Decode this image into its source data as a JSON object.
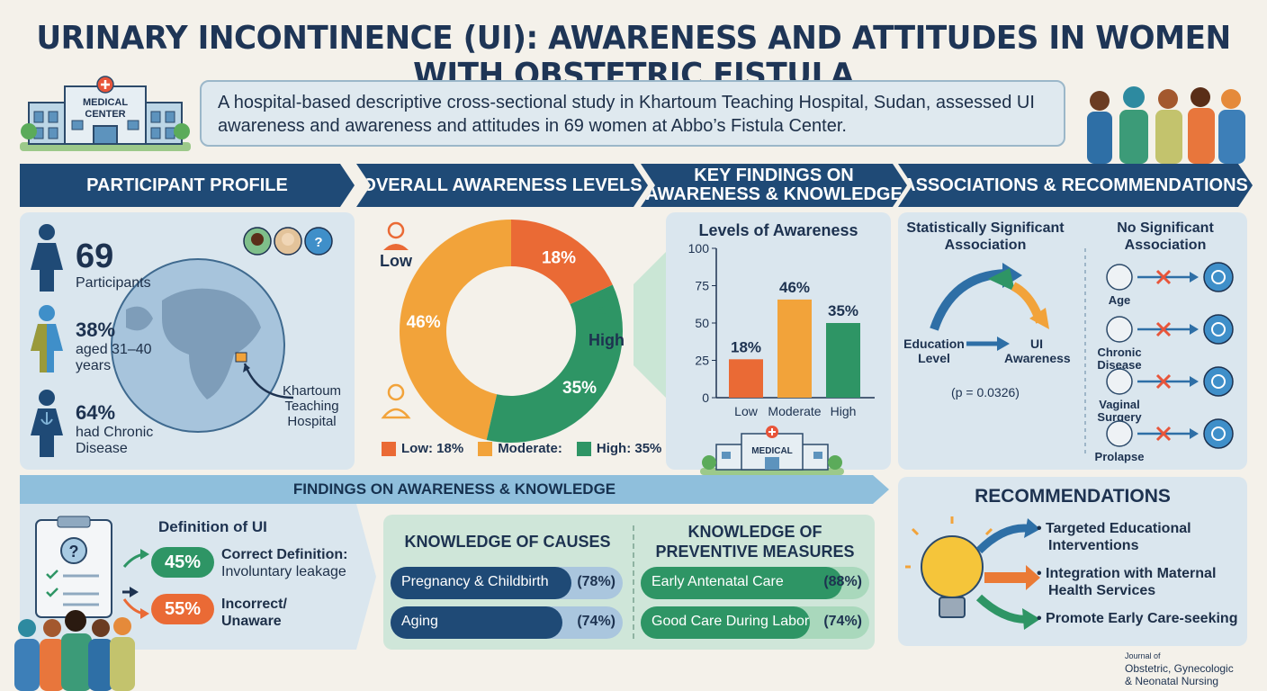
{
  "title": "URINARY INCONTINENCE (UI): AWARENESS AND ATTITUDES IN WOMEN WITH OBSTETRIC FISTULA",
  "intro": "A hospital-based descriptive cross-sectional study in Khartoum Teaching Hospital, Sudan, assessed UI awareness and awareness and attitudes in 69 women at Abbo’s Fistula Center.",
  "hospital_sign": {
    "line1": "MEDICAL",
    "line2": "CENTER"
  },
  "banners": {
    "profile": "PARTICIPANT PROFILE",
    "overall": "OVERALL AWARENESS LEVELS",
    "key_line1": "KEY FINDINGS ON",
    "key_line2": "AWARENESS & KNOWLEDGE",
    "assoc": "ASSOCIATIONS & RECOMMENDATIONS",
    "findings": "FINDINGS ON AWARENESS & KNOWLEDGE"
  },
  "profile": {
    "participants_value": "69",
    "participants_label": "Participants",
    "age_value": "38%",
    "age_label1": "aged 31–40",
    "age_label2": "years",
    "chronic_value": "64%",
    "chronic_label1": "had Chronic",
    "chronic_label2": "Disease",
    "map_label1": "Khartoum",
    "map_label2": "Teaching",
    "map_label3": "Hospital"
  },
  "donut": {
    "low_label": "Low",
    "high_label": "High",
    "slices": [
      {
        "name": "Low",
        "value": 18,
        "text": "18%",
        "color": "#ea6a35"
      },
      {
        "name": "High",
        "value": 35,
        "text": "35%",
        "color": "#2e9565"
      },
      {
        "name": "Moderate",
        "value": 46,
        "text": "46%",
        "color": "#f2a33a"
      }
    ],
    "legend": [
      {
        "text": "Low: 18%",
        "color": "#ea6a35"
      },
      {
        "text": "Moderate:",
        "color": "#f2a33a"
      },
      {
        "text": "High: 35%",
        "color": "#2e9565"
      }
    ]
  },
  "chart_data": {
    "type": "bar",
    "title": "Levels of Awareness",
    "categories": [
      "Low",
      "Moderate",
      "High"
    ],
    "values": [
      18,
      46,
      35
    ],
    "data_labels": [
      "18%",
      "46%",
      "35%"
    ],
    "colors": [
      "#ea6a35",
      "#f2a33a",
      "#2e9565"
    ],
    "ylim": [
      0,
      100
    ],
    "yticks": [
      0,
      25,
      50,
      75,
      100
    ],
    "bar_height_scale": [
      0,
      70
    ]
  },
  "medical_sign": "MEDICAL",
  "association": {
    "sig_title1": "Statistically Significant",
    "sig_title2": "Association",
    "nosig_title1": "No Significant",
    "nosig_title2": "Association",
    "education1": "Education",
    "education2": "Level",
    "ui1": "UI",
    "ui2": "Awareness",
    "pvalue": "(p = 0.0326)",
    "factors": [
      {
        "label1": "Age",
        "label2": "",
        "icon": "calendar-icon"
      },
      {
        "label1": "Chronic",
        "label2": "Disease",
        "icon": "heart-pulse-icon"
      },
      {
        "label1": "Vaginal",
        "label2": "Surgery",
        "icon": "uterus-icon"
      },
      {
        "label1": "Prolapse",
        "label2": "",
        "icon": "pelvis-icon"
      }
    ]
  },
  "definition": {
    "title": "Definition of UI",
    "correct_pct": "45%",
    "correct_label1": "Correct Definition:",
    "correct_label2": "Involuntary leakage",
    "incorrect_pct": "55%",
    "incorrect_label1": "Incorrect/",
    "incorrect_label2": "Unaware"
  },
  "causes": {
    "title": "KNOWLEDGE OF CAUSES",
    "items": [
      {
        "label": "Pregnancy & Childbirth",
        "pct": "(78%)",
        "value": 78
      },
      {
        "label": "Aging",
        "pct": "(74%)",
        "value": 74
      }
    ]
  },
  "preventive": {
    "title1": "KNOWLEDGE OF",
    "title2": "PREVENTIVE MEASURES",
    "items": [
      {
        "label": "Early Antenatal Care",
        "pct": "(88%)",
        "value": 88
      },
      {
        "label": "Good Care During Labor",
        "pct": "(74%)",
        "value": 74
      }
    ]
  },
  "recommendations": {
    "title": "RECOMMENDATIONS",
    "items": [
      {
        "line1": "• Targeted Educational",
        "line2": "Interventions",
        "color": "#2e6fa6"
      },
      {
        "line1": "• Integration with Maternal",
        "line2": "Health Services",
        "color": "#ea7a35"
      },
      {
        "line1": "• Promote Early Care-seeking",
        "line2": "",
        "color": "#2e9565"
      }
    ]
  },
  "journal": {
    "line1": "Journal of",
    "line2": "Obstetric, Gynecologic",
    "line3": "& Neonatal Nursing"
  }
}
